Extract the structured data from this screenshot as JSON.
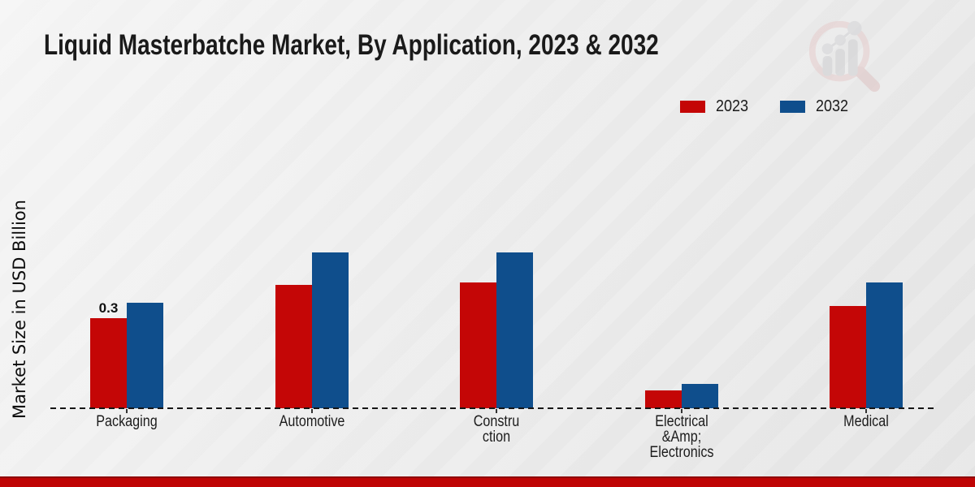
{
  "title": "Liquid Masterbatche Market, By Application, 2023 & 2032",
  "chart_data": {
    "type": "bar",
    "title": "Liquid Masterbatche Market, By Application, 2023 & 2032",
    "xlabel": "",
    "ylabel": "Market Size in USD Billion",
    "ylim": [
      0,
      0.62
    ],
    "grid": false,
    "legend_position": "top-right",
    "baseline_style": "dashed",
    "categories": [
      "Packaging",
      "Automotive",
      "Construction",
      "Electrical &Amp; Electronics",
      "Medical"
    ],
    "category_label_lines": [
      [
        "Packaging"
      ],
      [
        "Automotive"
      ],
      [
        "Constru",
        "ction"
      ],
      [
        "Electrical",
        "&Amp;",
        "Electronics"
      ],
      [
        "Medical"
      ]
    ],
    "series": [
      {
        "name": "2023",
        "color": "#c40606",
        "values": [
          0.3,
          0.41,
          0.42,
          0.06,
          0.34
        ]
      },
      {
        "name": "2032",
        "color": "#0f4e8c",
        "values": [
          0.35,
          0.52,
          0.52,
          0.08,
          0.42
        ]
      }
    ],
    "data_labels": [
      {
        "series_index": 0,
        "category_index": 0,
        "text": "0.3"
      }
    ]
  },
  "legend": {
    "items": [
      {
        "label": "2023",
        "color": "#c40606"
      },
      {
        "label": "2032",
        "color": "#0f4e8c"
      }
    ]
  },
  "watermark": {
    "icon": "magnifier-bar-chart-logo"
  },
  "footer": {
    "band_color": "#bf0404"
  }
}
